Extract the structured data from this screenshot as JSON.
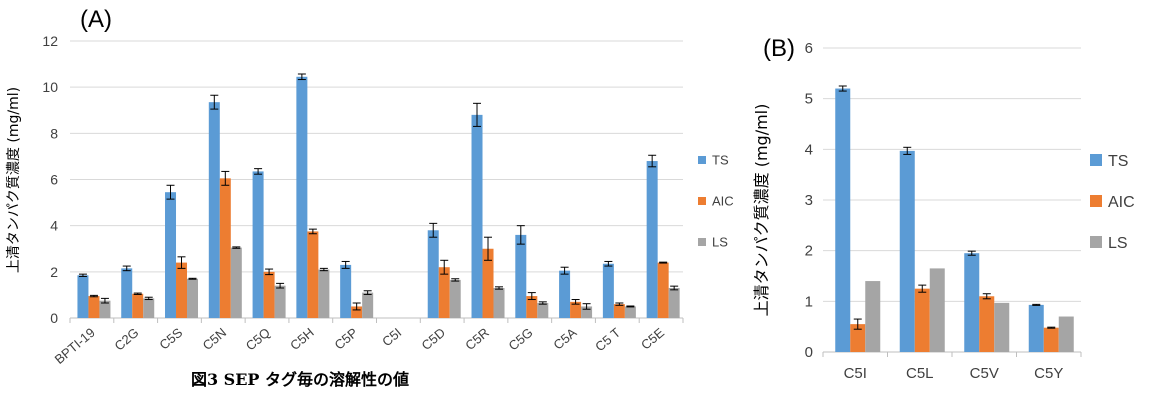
{
  "figure_caption": "図3 SEP タグ毎の溶解性の値",
  "colors": {
    "TS": "#5b9bd5",
    "AIC": "#ed7d31",
    "LS": "#a5a5a5",
    "grid": "#d9d9d9"
  },
  "chart_data": [
    {
      "panel_label": "(A)",
      "type": "bar",
      "ylabel": "上清タンパク質濃度 (mg/ml)",
      "ylim": [
        0,
        12
      ],
      "yticks": [
        0,
        2,
        4,
        6,
        8,
        10,
        12
      ],
      "categories": [
        "BPTI-19",
        "C2G",
        "C5S",
        "C5N",
        "C5Q",
        "C5H",
        "C5P",
        "C5I",
        "C5D",
        "C5R",
        "C5G",
        "C5A",
        "C5 T",
        "C5E"
      ],
      "series": [
        {
          "name": "TS",
          "values": [
            1.85,
            2.15,
            5.45,
            9.35,
            6.35,
            10.45,
            2.3,
            0,
            3.8,
            8.8,
            3.6,
            2.05,
            2.35,
            6.8
          ],
          "errors": [
            0.05,
            0.1,
            0.3,
            0.3,
            0.12,
            0.12,
            0.15,
            0,
            0.3,
            0.5,
            0.4,
            0.15,
            0.1,
            0.25
          ]
        },
        {
          "name": "AIC",
          "values": [
            0.95,
            1.05,
            2.4,
            6.05,
            2.0,
            3.75,
            0.5,
            0,
            2.2,
            3.0,
            0.95,
            0.7,
            0.6,
            2.4
          ],
          "errors": [
            0.03,
            0.03,
            0.25,
            0.3,
            0.12,
            0.1,
            0.15,
            0,
            0.3,
            0.5,
            0.15,
            0.1,
            0.05,
            0.02
          ]
        },
        {
          "name": "LS",
          "values": [
            0.75,
            0.85,
            1.7,
            3.05,
            1.4,
            2.1,
            1.1,
            0,
            1.65,
            1.3,
            0.65,
            0.5,
            0.5,
            1.3
          ],
          "errors": [
            0.1,
            0.05,
            0.02,
            0.03,
            0.1,
            0.05,
            0.08,
            0,
            0.05,
            0.05,
            0.05,
            0.12,
            0.02,
            0.08
          ]
        }
      ],
      "legend_position": "right"
    },
    {
      "panel_label": "(B)",
      "type": "bar",
      "ylabel": "上清タンパク質濃度 (mg/ml)",
      "ylim": [
        0,
        6
      ],
      "yticks": [
        0,
        1,
        2,
        3,
        4,
        5,
        6
      ],
      "categories": [
        "C5I",
        "C5L",
        "C5V",
        "C5Y"
      ],
      "series": [
        {
          "name": "TS",
          "values": [
            5.2,
            3.97,
            1.95,
            0.93
          ],
          "errors": [
            0.05,
            0.07,
            0.04,
            0.01
          ]
        },
        {
          "name": "AIC",
          "values": [
            0.55,
            1.25,
            1.1,
            0.48
          ],
          "errors": [
            0.1,
            0.07,
            0.05,
            0.01
          ]
        },
        {
          "name": "LS",
          "values": [
            1.4,
            1.65,
            0.97,
            0.7
          ],
          "errors": [
            0,
            0,
            0,
            0
          ]
        }
      ],
      "legend_position": "right"
    }
  ]
}
